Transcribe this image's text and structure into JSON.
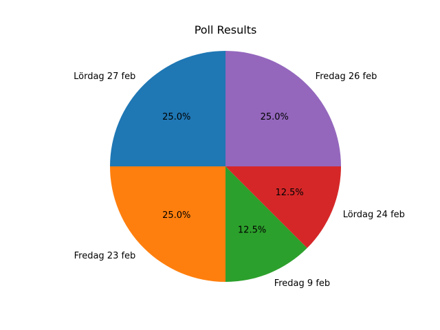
{
  "chart_data": {
    "type": "pie",
    "title": "Poll Results",
    "start_angle_deg": 90,
    "direction": "counterclockwise",
    "slices": [
      {
        "label": "Lördag 27 feb",
        "value": 25.0,
        "pct_label": "25.0%",
        "color": "#1f77b4"
      },
      {
        "label": "Fredag 23 feb",
        "value": 25.0,
        "pct_label": "25.0%",
        "color": "#ff7f0e"
      },
      {
        "label": "Fredag 9 feb",
        "value": 12.5,
        "pct_label": "12.5%",
        "color": "#2ca02c"
      },
      {
        "label": "Lördag 24 feb",
        "value": 12.5,
        "pct_label": "12.5%",
        "color": "#d62728"
      },
      {
        "label": "Fredag 26 feb",
        "value": 25.0,
        "pct_label": "25.0%",
        "color": "#9467bd"
      }
    ]
  }
}
